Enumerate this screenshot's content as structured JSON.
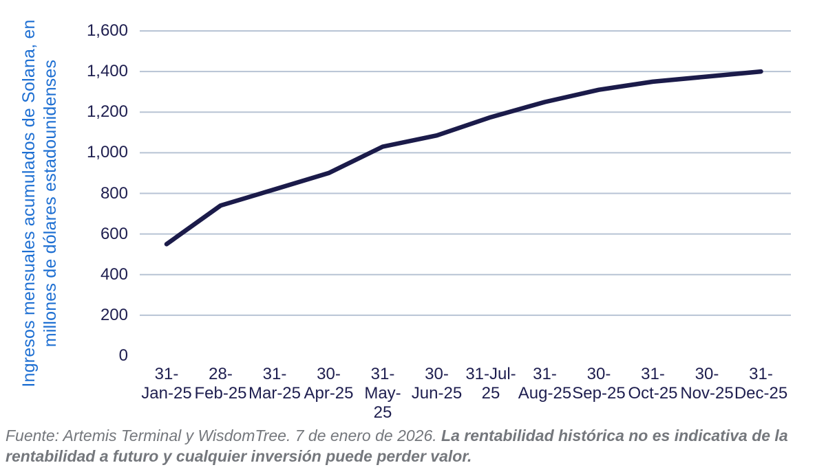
{
  "chart_data": {
    "type": "line",
    "title": "",
    "xlabel": "",
    "ylabel": "Ingresos mensuales acumulados de Solana, en millones de dólares estadounidenses",
    "ylabel_lines": [
      "Ingresos mensuales acumulados de Solana, en",
      "millones de dólares estadounidenses"
    ],
    "categories": [
      "31-Jan-25",
      "28-Feb-25",
      "31-Mar-25",
      "30-Apr-25",
      "31-May-25",
      "30-Jun-25",
      "31-Jul-25",
      "31-Aug-25",
      "30-Sep-25",
      "31-Oct-25",
      "30-Nov-25",
      "31-Dec-25"
    ],
    "x_tick_lines": [
      [
        "31-",
        "Jan-25"
      ],
      [
        "28-",
        "Feb-25"
      ],
      [
        "31-",
        "Mar-25"
      ],
      [
        "30-",
        "Apr-25"
      ],
      [
        "31-",
        "May-",
        "25"
      ],
      [
        "30-",
        "Jun-25"
      ],
      [
        "31-Jul-",
        "25"
      ],
      [
        "31-",
        "Aug-25"
      ],
      [
        "30-",
        "Sep-25"
      ],
      [
        "31-",
        "Oct-25"
      ],
      [
        "30-",
        "Nov-25"
      ],
      [
        "31-",
        "Dec-25"
      ]
    ],
    "values": [
      550,
      740,
      820,
      900,
      1030,
      1085,
      1175,
      1250,
      1310,
      1350,
      1375,
      1400
    ],
    "ylim": [
      0,
      1600
    ],
    "y_ticks": [
      0,
      200,
      400,
      600,
      800,
      1000,
      1200,
      1400,
      1600
    ],
    "grid": "horizontal-only, no gridline at 0, no axis lines",
    "legend": "none",
    "colors": {
      "line": "#1b1b4a",
      "tick_text": "#1e1e4f",
      "gridline": "#b7c3d4",
      "y_title_blue": "#1e6fd2",
      "footer_gray": "#74777c"
    }
  },
  "footer": {
    "normal": "Fuente: Artemis Terminal y WisdomTree. 7 de enero de 2026. ",
    "bold": "La rentabilidad histórica no es indicativa de la rentabilidad a futuro y cualquier inversión puede perder valor."
  }
}
